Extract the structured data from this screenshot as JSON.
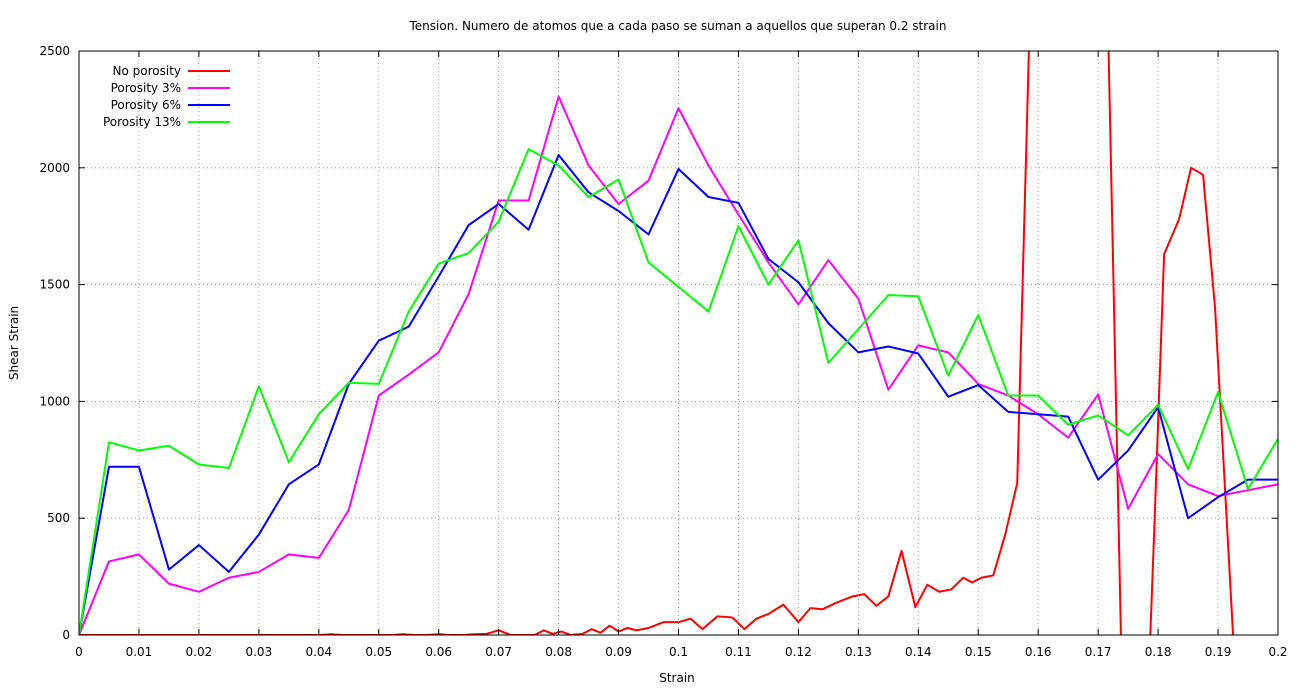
{
  "chart_data": {
    "type": "line",
    "title": "Tension. Numero de atomos que a cada paso se suman a aquellos que superan 0.2 strain",
    "xlabel": "Strain",
    "ylabel": "Shear Strain",
    "xlim": [
      0,
      0.2
    ],
    "ylim": [
      0,
      2500
    ],
    "xticks": [
      0,
      0.01,
      0.02,
      0.03,
      0.04,
      0.05,
      0.06,
      0.07,
      0.08,
      0.09,
      0.1,
      0.11,
      0.12,
      0.13,
      0.14,
      0.15,
      0.16,
      0.17,
      0.18,
      0.19,
      0.2
    ],
    "xtick_labels": [
      "0",
      "0.01",
      "0.02",
      "0.03",
      "0.04",
      "0.05",
      "0.06",
      "0.07",
      "0.08",
      "0.09",
      "0.1",
      "0.11",
      "0.12",
      "0.13",
      "0.14",
      "0.15",
      "0.16",
      "0.17",
      "0.18",
      "0.19",
      "0.2"
    ],
    "yticks": [
      0,
      500,
      1000,
      1500,
      2000,
      2500
    ],
    "ytick_labels": [
      "0",
      "500",
      "1000",
      "1500",
      "2000",
      "2500"
    ],
    "grid": true,
    "legend_position": "top-left",
    "series": [
      {
        "name": "No porosity",
        "color": "#ff0000",
        "points": [
          [
            0,
            0
          ],
          [
            0.005,
            0
          ],
          [
            0.01,
            0
          ],
          [
            0.015,
            0
          ],
          [
            0.02,
            0
          ],
          [
            0.025,
            0
          ],
          [
            0.03,
            0
          ],
          [
            0.035,
            0
          ],
          [
            0.037,
            0
          ],
          [
            0.04,
            0
          ],
          [
            0.042,
            3
          ],
          [
            0.044,
            0
          ],
          [
            0.046,
            0
          ],
          [
            0.048,
            0
          ],
          [
            0.05,
            0
          ],
          [
            0.052,
            0
          ],
          [
            0.054,
            3
          ],
          [
            0.056,
            0
          ],
          [
            0.058,
            0
          ],
          [
            0.06,
            3
          ],
          [
            0.062,
            0
          ],
          [
            0.064,
            0
          ],
          [
            0.066,
            3
          ],
          [
            0.068,
            5
          ],
          [
            0.07,
            20
          ],
          [
            0.072,
            0
          ],
          [
            0.074,
            0
          ],
          [
            0.076,
            0
          ],
          [
            0.0775,
            20
          ],
          [
            0.079,
            5
          ],
          [
            0.0805,
            15
          ],
          [
            0.082,
            0
          ],
          [
            0.084,
            5
          ],
          [
            0.0855,
            25
          ],
          [
            0.087,
            10
          ],
          [
            0.0885,
            40
          ],
          [
            0.09,
            15
          ],
          [
            0.0915,
            30
          ],
          [
            0.093,
            20
          ],
          [
            0.095,
            30
          ],
          [
            0.0975,
            55
          ],
          [
            0.1,
            55
          ],
          [
            0.102,
            70
          ],
          [
            0.104,
            25
          ],
          [
            0.1065,
            80
          ],
          [
            0.109,
            75
          ],
          [
            0.111,
            25
          ],
          [
            0.113,
            70
          ],
          [
            0.115,
            90
          ],
          [
            0.1175,
            130
          ],
          [
            0.12,
            55
          ],
          [
            0.122,
            115
          ],
          [
            0.124,
            110
          ],
          [
            0.1265,
            140
          ],
          [
            0.129,
            165
          ],
          [
            0.131,
            175
          ],
          [
            0.133,
            125
          ],
          [
            0.135,
            165
          ],
          [
            0.1372,
            360
          ],
          [
            0.1395,
            120
          ],
          [
            0.1415,
            215
          ],
          [
            0.1435,
            185
          ],
          [
            0.1455,
            195
          ],
          [
            0.1475,
            245
          ],
          [
            0.149,
            225
          ],
          [
            0.1505,
            245
          ],
          [
            0.1525,
            255
          ],
          [
            0.1545,
            430
          ],
          [
            0.1565,
            650
          ],
          [
            0.1585,
            2550
          ]
        ]
      },
      {
        "name": "",
        "color": "#ff0000",
        "points": [
          [
            0.1717,
            2550
          ],
          [
            0.1738,
            0
          ]
        ]
      },
      {
        "name": "",
        "color": "#ff0000",
        "points": [
          [
            0.1787,
            0
          ],
          [
            0.1795,
            550
          ],
          [
            0.181,
            1630
          ],
          [
            0.1835,
            1780
          ],
          [
            0.1855,
            2000
          ],
          [
            0.1875,
            1970
          ],
          [
            0.1895,
            1400
          ],
          [
            0.1925,
            0
          ]
        ]
      },
      {
        "name": "Porosity 3%",
        "color": "#ff00ff",
        "points": [
          [
            0,
            0
          ],
          [
            0.005,
            315
          ],
          [
            0.01,
            345
          ],
          [
            0.015,
            220
          ],
          [
            0.02,
            185
          ],
          [
            0.025,
            245
          ],
          [
            0.03,
            270
          ],
          [
            0.035,
            345
          ],
          [
            0.04,
            330
          ],
          [
            0.045,
            535
          ],
          [
            0.05,
            1025
          ],
          [
            0.055,
            1115
          ],
          [
            0.06,
            1210
          ],
          [
            0.065,
            1460
          ],
          [
            0.07,
            1860
          ],
          [
            0.075,
            1860
          ],
          [
            0.08,
            2305
          ],
          [
            0.085,
            2010
          ],
          [
            0.09,
            1845
          ],
          [
            0.095,
            1945
          ],
          [
            0.1,
            2255
          ],
          [
            0.105,
            2010
          ],
          [
            0.11,
            1800
          ],
          [
            0.115,
            1595
          ],
          [
            0.12,
            1415
          ],
          [
            0.125,
            1605
          ],
          [
            0.13,
            1440
          ],
          [
            0.135,
            1050
          ],
          [
            0.14,
            1240
          ],
          [
            0.145,
            1210
          ],
          [
            0.15,
            1075
          ],
          [
            0.155,
            1025
          ],
          [
            0.16,
            945
          ],
          [
            0.165,
            845
          ],
          [
            0.17,
            1030
          ],
          [
            0.175,
            540
          ],
          [
            0.18,
            775
          ],
          [
            0.185,
            645
          ],
          [
            0.19,
            595
          ],
          [
            0.195,
            620
          ],
          [
            0.2,
            645
          ]
        ]
      },
      {
        "name": "Porosity 6%",
        "color": "#0000ff",
        "points": [
          [
            0,
            0
          ],
          [
            0.005,
            720
          ],
          [
            0.01,
            720
          ],
          [
            0.015,
            280
          ],
          [
            0.02,
            385
          ],
          [
            0.025,
            270
          ],
          [
            0.03,
            430
          ],
          [
            0.035,
            645
          ],
          [
            0.04,
            730
          ],
          [
            0.045,
            1075
          ],
          [
            0.05,
            1260
          ],
          [
            0.055,
            1320
          ],
          [
            0.06,
            1535
          ],
          [
            0.065,
            1755
          ],
          [
            0.07,
            1845
          ],
          [
            0.075,
            1735
          ],
          [
            0.08,
            2055
          ],
          [
            0.085,
            1895
          ],
          [
            0.09,
            1815
          ],
          [
            0.095,
            1715
          ],
          [
            0.1,
            1995
          ],
          [
            0.105,
            1875
          ],
          [
            0.11,
            1850
          ],
          [
            0.115,
            1610
          ],
          [
            0.12,
            1510
          ],
          [
            0.125,
            1335
          ],
          [
            0.13,
            1210
          ],
          [
            0.135,
            1235
          ],
          [
            0.14,
            1205
          ],
          [
            0.145,
            1020
          ],
          [
            0.15,
            1070
          ],
          [
            0.155,
            955
          ],
          [
            0.16,
            945
          ],
          [
            0.165,
            935
          ],
          [
            0.17,
            665
          ],
          [
            0.175,
            790
          ],
          [
            0.18,
            975
          ],
          [
            0.185,
            500
          ],
          [
            0.19,
            590
          ],
          [
            0.195,
            665
          ],
          [
            0.2,
            665
          ]
        ]
      },
      {
        "name": "Porosity 13%",
        "color": "#00ff00",
        "points": [
          [
            0,
            0
          ],
          [
            0.005,
            825
          ],
          [
            0.01,
            790
          ],
          [
            0.015,
            810
          ],
          [
            0.02,
            730
          ],
          [
            0.025,
            715
          ],
          [
            0.03,
            1065
          ],
          [
            0.035,
            740
          ],
          [
            0.04,
            945
          ],
          [
            0.045,
            1080
          ],
          [
            0.05,
            1075
          ],
          [
            0.055,
            1385
          ],
          [
            0.06,
            1590
          ],
          [
            0.065,
            1635
          ],
          [
            0.07,
            1770
          ],
          [
            0.075,
            2080
          ],
          [
            0.08,
            2010
          ],
          [
            0.085,
            1875
          ],
          [
            0.09,
            1950
          ],
          [
            0.095,
            1595
          ],
          [
            0.1,
            1490
          ],
          [
            0.105,
            1385
          ],
          [
            0.11,
            1750
          ],
          [
            0.115,
            1500
          ],
          [
            0.12,
            1690
          ],
          [
            0.125,
            1165
          ],
          [
            0.13,
            1310
          ],
          [
            0.135,
            1455
          ],
          [
            0.14,
            1450
          ],
          [
            0.145,
            1110
          ],
          [
            0.15,
            1370
          ],
          [
            0.155,
            1025
          ],
          [
            0.16,
            1025
          ],
          [
            0.165,
            900
          ],
          [
            0.17,
            940
          ],
          [
            0.175,
            855
          ],
          [
            0.18,
            985
          ],
          [
            0.185,
            710
          ],
          [
            0.19,
            1040
          ],
          [
            0.195,
            625
          ],
          [
            0.2,
            840
          ]
        ]
      }
    ]
  }
}
